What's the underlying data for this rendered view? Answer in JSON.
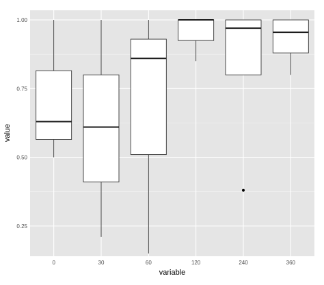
{
  "chart_data": {
    "type": "boxplot",
    "xlabel": "variable",
    "ylabel": "value",
    "categories": [
      "0",
      "30",
      "60",
      "120",
      "240",
      "360"
    ],
    "ylim": [
      0.14,
      1.035
    ],
    "y_ticks": [
      0.25,
      0.5,
      0.75,
      1.0
    ],
    "y_tick_labels": [
      "0.25",
      "0.50",
      "0.75",
      "1.00"
    ],
    "grid": true,
    "boxes": [
      {
        "category": "0",
        "whisker_low": 0.5,
        "q1": 0.565,
        "median": 0.63,
        "q3": 0.815,
        "whisker_high": 1.0,
        "outliers": []
      },
      {
        "category": "30",
        "whisker_low": 0.21,
        "q1": 0.41,
        "median": 0.61,
        "q3": 0.8,
        "whisker_high": 1.0,
        "outliers": []
      },
      {
        "category": "60",
        "whisker_low": 0.15,
        "q1": 0.51,
        "median": 0.86,
        "q3": 0.93,
        "whisker_high": 1.0,
        "outliers": []
      },
      {
        "category": "120",
        "whisker_low": 0.85,
        "q1": 0.925,
        "median": 1.0,
        "q3": 1.0,
        "whisker_high": 1.0,
        "outliers": []
      },
      {
        "category": "240",
        "whisker_low": 0.8,
        "q1": 0.8,
        "median": 0.97,
        "q3": 1.0,
        "whisker_high": 1.0,
        "outliers": [
          0.38
        ]
      },
      {
        "category": "360",
        "whisker_low": 0.8,
        "q1": 0.88,
        "median": 0.955,
        "q3": 1.0,
        "whisker_high": 1.0,
        "outliers": []
      }
    ]
  }
}
